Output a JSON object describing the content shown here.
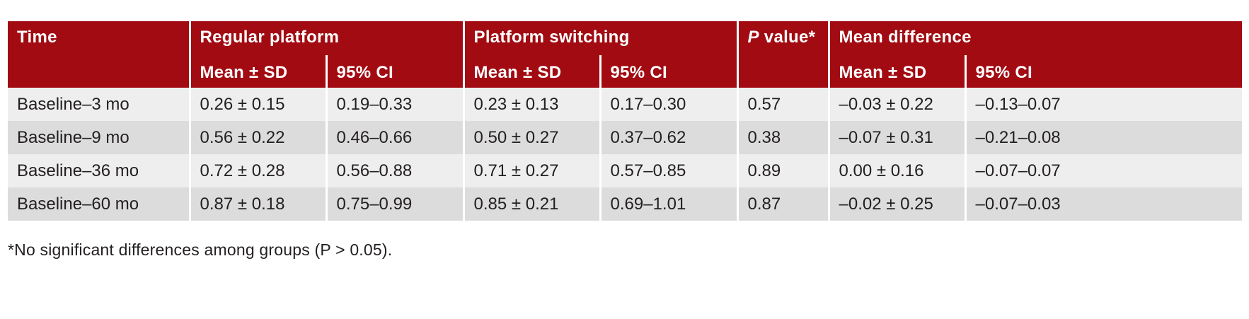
{
  "table": {
    "headers": {
      "time": "Time",
      "regular_platform": "Regular platform",
      "platform_switching": "Platform switching",
      "p_value_italic": "P",
      "p_value_rest": " value*",
      "mean_difference": "Mean difference",
      "sub": {
        "rp_mean": "Mean ± SD",
        "rp_ci": "95% CI",
        "ps_mean": "Mean ± SD",
        "ps_ci": "95% CI",
        "md_mean": "Mean ± SD",
        "md_ci": "95% CI"
      }
    },
    "rows": [
      {
        "time": "Baseline–3 mo",
        "rp_mean": "0.26 ± 0.15",
        "rp_ci": "0.19–0.33",
        "ps_mean": "0.23 ± 0.13",
        "ps_ci": "0.17–0.30",
        "p": "0.57",
        "md_mean": "–0.03 ± 0.22",
        "md_ci": "–0.13–0.07"
      },
      {
        "time": "Baseline–9 mo",
        "rp_mean": "0.56 ± 0.22",
        "rp_ci": "0.46–0.66",
        "ps_mean": "0.50 ± 0.27",
        "ps_ci": "0.37–0.62",
        "p": "0.38",
        "md_mean": "–0.07 ± 0.31",
        "md_ci": "–0.21–0.08"
      },
      {
        "time": "Baseline–36 mo",
        "rp_mean": "0.72 ± 0.28",
        "rp_ci": "0.56–0.88",
        "ps_mean": "0.71 ± 0.27",
        "ps_ci": "0.57–0.85",
        "p": "0.89",
        "md_mean": "0.00 ± 0.16",
        "md_ci": "–0.07–0.07"
      },
      {
        "time": "Baseline–60 mo",
        "rp_mean": "0.87 ± 0.18",
        "rp_ci": "0.75–0.99",
        "ps_mean": "0.85 ± 0.21",
        "ps_ci": "0.69–1.01",
        "p": "0.87",
        "md_mean": "–0.02 ± 0.25",
        "md_ci": "–0.07–0.03"
      }
    ]
  },
  "footnote": "*No significant differences among groups (P > 0.05).",
  "colors": {
    "header_bg": "#a20b12",
    "row_light": "#eeeeef",
    "row_dark": "#dcdcdd"
  }
}
